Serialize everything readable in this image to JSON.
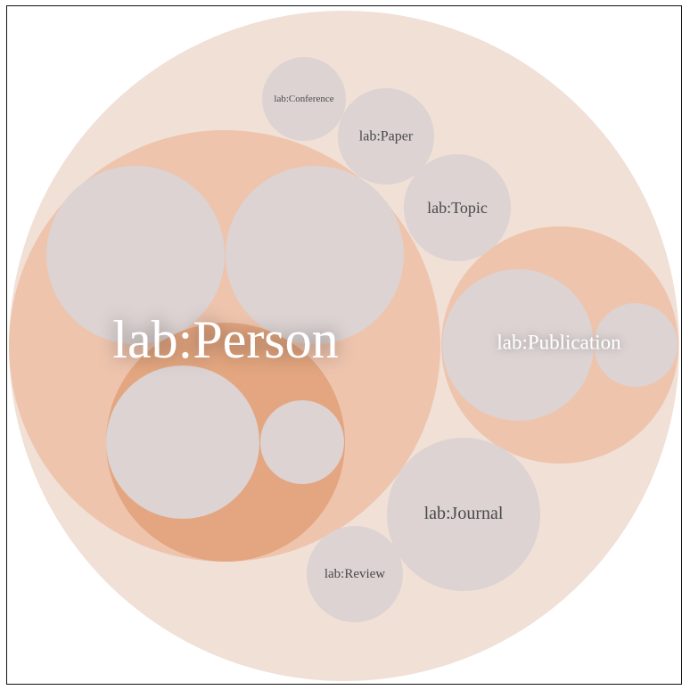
{
  "colors": {
    "outer_fill": "#f1e0d6",
    "group_fill": "#eec4ad",
    "inner_group_fill": "#e3a680",
    "leaf_fill": "#dcd3d2",
    "light_label": "#ffffff",
    "dark_label": "#4a4a4a",
    "frame_border": "#111111"
  },
  "nodes": {
    "person": {
      "label": "lab:Person"
    },
    "publication": {
      "label": "lab:Publication"
    },
    "conference": {
      "label": "lab:Conference"
    },
    "paper": {
      "label": "lab:Paper"
    },
    "topic": {
      "label": "lab:Topic"
    },
    "journal": {
      "label": "lab:Journal"
    },
    "review": {
      "label": "lab:Review"
    }
  }
}
